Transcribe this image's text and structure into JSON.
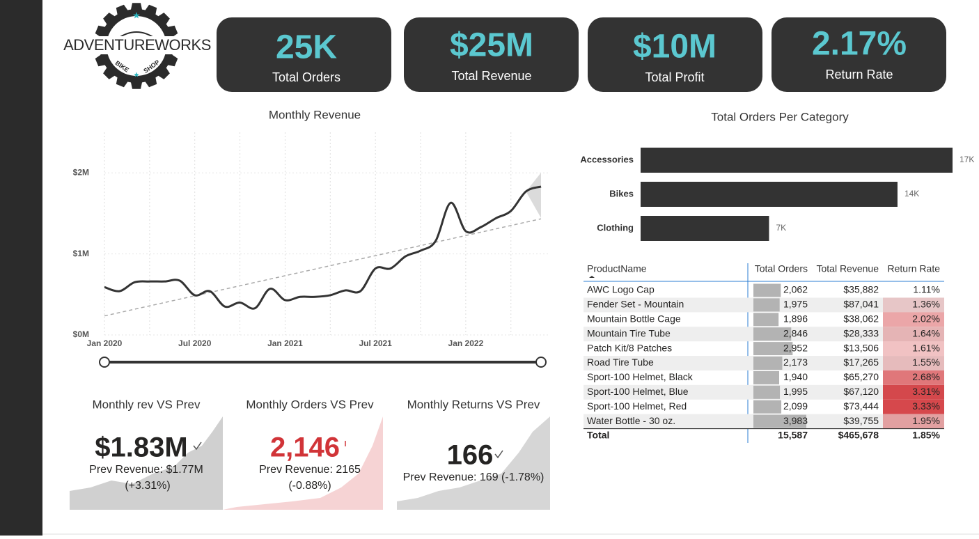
{
  "logo": {
    "name": "ADVENTUREWORKS",
    "bike": "BIKE",
    "shop": "SHOP"
  },
  "kpis": [
    {
      "value": "25K",
      "label": "Total Orders"
    },
    {
      "value": "$25M",
      "label": "Total Revenue"
    },
    {
      "value": "$10M",
      "label": "Total Profit"
    },
    {
      "value": "2.17%",
      "label": "Return Rate"
    }
  ],
  "chart_data": [
    {
      "type": "line",
      "title": "Monthly Revenue",
      "categories": [
        "Jan 2020",
        null,
        null,
        null,
        null,
        null,
        "Jul 2020",
        null,
        null,
        null,
        null,
        null,
        "Jan 2021",
        null,
        null,
        null,
        null,
        null,
        "Jul 2021",
        null,
        null,
        null,
        null,
        null,
        "Jan 2022",
        null,
        null,
        null,
        null,
        null
      ],
      "values": [
        590000,
        540000,
        650000,
        660000,
        660000,
        670000,
        490000,
        540000,
        350000,
        400000,
        330000,
        570000,
        430000,
        470000,
        470000,
        490000,
        550000,
        540000,
        820000,
        820000,
        970000,
        1040000,
        1160000,
        1630000,
        1280000,
        1330000,
        1440000,
        1530000,
        1770000,
        1830000
      ],
      "color": "#333333",
      "ylim": [
        0,
        2500000
      ],
      "yticks": [
        {
          "value": 0,
          "label": "$0M"
        },
        {
          "value": 1000000,
          "label": "$1M"
        },
        {
          "value": 2000000,
          "label": "$2M"
        }
      ],
      "grid": true,
      "trendline": true
    },
    {
      "type": "hbar",
      "title": "Total Orders Per Category",
      "categories": [
        "Accessories",
        "Bikes",
        "Clothing"
      ],
      "values": [
        17000,
        14000,
        7000
      ],
      "value_labels": [
        "17K",
        "14K",
        "7K"
      ],
      "color": "#333333"
    }
  ],
  "table": {
    "columns": [
      "ProductName",
      "Total Orders",
      "Total Revenue",
      "Return Rate"
    ],
    "rows": [
      [
        "AWC Logo Cap",
        "2,062",
        "$35,882",
        "1.11%"
      ],
      [
        "Fender Set - Mountain",
        "1,975",
        "$87,041",
        "1.36%"
      ],
      [
        "Mountain Bottle Cage",
        "1,896",
        "$38,062",
        "2.02%"
      ],
      [
        "Mountain Tire Tube",
        "2,846",
        "$28,333",
        "1.64%"
      ],
      [
        "Patch Kit/8 Patches",
        "2,952",
        "$13,506",
        "1.61%"
      ],
      [
        "Road Tire Tube",
        "2,173",
        "$17,265",
        "1.55%"
      ],
      [
        "Sport-100 Helmet, Black",
        "1,940",
        "$65,270",
        "2.68%"
      ],
      [
        "Sport-100 Helmet, Blue",
        "1,995",
        "$67,120",
        "3.31%"
      ],
      [
        "Sport-100 Helmet, Red",
        "2,099",
        "$73,444",
        "3.33%"
      ],
      [
        "Water Bottle - 30 oz.",
        "3,983",
        "$39,755",
        "1.95%"
      ]
    ],
    "total": [
      "Total",
      "15,587",
      "$465,678",
      "1.85%"
    ]
  },
  "cards": [
    {
      "title": "Monthly rev VS Prev",
      "value": "$1.83M",
      "line1": "Prev Revenue: $1.77M",
      "line2": "(+3.31%)"
    },
    {
      "title": "Monthly Orders VS Prev",
      "value": "2,146",
      "line1": "Prev Revenue: 2165",
      "line2": "(-0.88%)"
    },
    {
      "title": "Monthly Returns VS Prev",
      "value": "166",
      "line1": "Prev Revenue: 169 (-1.78%)"
    }
  ]
}
